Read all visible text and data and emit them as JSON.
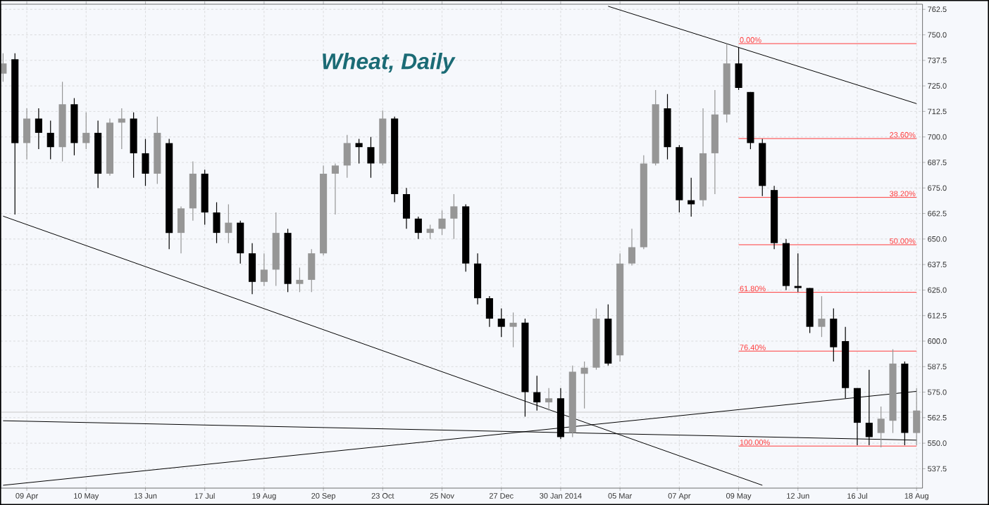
{
  "chart_data": {
    "type": "candlestick",
    "title": "Wheat, Daily",
    "categories": [
      null,
      null,
      "09 Apr",
      null,
      null,
      null,
      null,
      "10 May",
      null,
      null,
      null,
      null,
      "13 Jun",
      null,
      null,
      null,
      null,
      "17 Jul",
      null,
      null,
      null,
      null,
      "19 Aug",
      null,
      null,
      null,
      null,
      "20 Sep",
      null,
      null,
      null,
      null,
      "23 Oct",
      null,
      null,
      null,
      null,
      "25 Nov",
      null,
      null,
      null,
      null,
      "27 Dec",
      null,
      null,
      null,
      null,
      "30 Jan 2014",
      null,
      null,
      null,
      null,
      "05 Mar",
      null,
      null,
      null,
      null,
      "07 Apr",
      null,
      null,
      null,
      null,
      "09 May",
      null,
      null,
      null,
      null,
      "12 Jun",
      null,
      null,
      null,
      null,
      "16 Jul",
      null,
      null,
      null,
      null,
      "18 Aug"
    ],
    "ohlc": [
      [
        731,
        741,
        727,
        736
      ],
      [
        738,
        741,
        662,
        697
      ],
      [
        697,
        714,
        689,
        709
      ],
      [
        709,
        714,
        694,
        702
      ],
      [
        702,
        708,
        689,
        695
      ],
      [
        695,
        727,
        688,
        716
      ],
      [
        716,
        719,
        691,
        697
      ],
      [
        697,
        712,
        694,
        702
      ],
      [
        702,
        708,
        675,
        682
      ],
      [
        682,
        709,
        681,
        707
      ],
      [
        707,
        714,
        694,
        709
      ],
      [
        709,
        712,
        680,
        692
      ],
      [
        692,
        699,
        676,
        682
      ],
      [
        682,
        710,
        677,
        702
      ],
      [
        697,
        699,
        645,
        653
      ],
      [
        653,
        666,
        643,
        665
      ],
      [
        665,
        688,
        659,
        682
      ],
      [
        682,
        684,
        657,
        663
      ],
      [
        663,
        668,
        648,
        653
      ],
      [
        653,
        667,
        648,
        658
      ],
      [
        658,
        659,
        638,
        643
      ],
      [
        643,
        648,
        623,
        629
      ],
      [
        629,
        643,
        627,
        635
      ],
      [
        635,
        663,
        627,
        653
      ],
      [
        653,
        655,
        624,
        628
      ],
      [
        628,
        636,
        624,
        630
      ],
      [
        630,
        645,
        624,
        643
      ],
      [
        643,
        686,
        642,
        682
      ],
      [
        682,
        687,
        662,
        686
      ],
      [
        686,
        701,
        680,
        697
      ],
      [
        697,
        699,
        687,
        695
      ],
      [
        695,
        700,
        680,
        687
      ],
      [
        687,
        713,
        686,
        709
      ],
      [
        709,
        710,
        668,
        672
      ],
      [
        672,
        675,
        655,
        660
      ],
      [
        660,
        661,
        650,
        653
      ],
      [
        653,
        657,
        650,
        655
      ],
      [
        655,
        664,
        652,
        660
      ],
      [
        660,
        672,
        650,
        666
      ],
      [
        666,
        667,
        634,
        638
      ],
      [
        638,
        643,
        618,
        621
      ],
      [
        621,
        622,
        607,
        611
      ],
      [
        611,
        616,
        602,
        607
      ],
      [
        607,
        614,
        597,
        609
      ],
      [
        609,
        611,
        563,
        575
      ],
      [
        575,
        583,
        566,
        570
      ],
      [
        570,
        577,
        566,
        572
      ],
      [
        572,
        577,
        552,
        553
      ],
      [
        555,
        588,
        553,
        585
      ],
      [
        584,
        590,
        567,
        587
      ],
      [
        587,
        616,
        586,
        611
      ],
      [
        611,
        618,
        588,
        589
      ],
      [
        593,
        643,
        590,
        638
      ],
      [
        638,
        655,
        637,
        646
      ],
      [
        646,
        691,
        645,
        687
      ],
      [
        687,
        723,
        686,
        716
      ],
      [
        714,
        721,
        689,
        695
      ],
      [
        695,
        696,
        663,
        669
      ],
      [
        669,
        680,
        661,
        667
      ],
      [
        669,
        714,
        666,
        692
      ],
      [
        692,
        723,
        672,
        711
      ],
      [
        711,
        745.5,
        707,
        736
      ],
      [
        736,
        744,
        723,
        724
      ],
      [
        722,
        722,
        694,
        697
      ],
      [
        697,
        699,
        671,
        676
      ],
      [
        674,
        676,
        645,
        648
      ],
      [
        648,
        650,
        625,
        627
      ],
      [
        627,
        643,
        624,
        626
      ],
      [
        626,
        626,
        604,
        607
      ],
      [
        607,
        622,
        602,
        611
      ],
      [
        611,
        616,
        590,
        597
      ],
      [
        600,
        607,
        572,
        577
      ],
      [
        577,
        577,
        549,
        560
      ],
      [
        560,
        586,
        549,
        553
      ],
      [
        555,
        568,
        548,
        562
      ],
      [
        561,
        596,
        555,
        589
      ],
      [
        589,
        590,
        549,
        555
      ],
      [
        555,
        577,
        549,
        566
      ]
    ],
    "ylim": [
      528,
      765
    ],
    "yticks": [
      537.5,
      {
        "value": 550,
        "label": "550.0"
      },
      562.5,
      {
        "value": 575,
        "label": "575.0"
      },
      587.5,
      {
        "value": 600,
        "label": "600.0"
      },
      612.5,
      {
        "value": 625,
        "label": "625.0"
      },
      637.5,
      {
        "value": 650,
        "label": "650.0"
      },
      662.5,
      {
        "value": 675,
        "label": "675.0"
      },
      687.5,
      {
        "value": 700,
        "label": "700.0"
      },
      712.5,
      {
        "value": 725,
        "label": "725.0"
      },
      737.5,
      {
        "value": 750,
        "label": "750.0"
      },
      762.5
    ],
    "grid": true,
    "series": [
      {
        "type": "line",
        "color": "#000000",
        "values": [
          661.2,
          null,
          null,
          null,
          null,
          null,
          null,
          null,
          null,
          null,
          null,
          null,
          null,
          null,
          null,
          null,
          null,
          null,
          null,
          null,
          null,
          null,
          null,
          null,
          null,
          null,
          null,
          null,
          null,
          null,
          null,
          null,
          null,
          null,
          null,
          null,
          null,
          null,
          null,
          null,
          null,
          null,
          null,
          null,
          null,
          null,
          null,
          null,
          null,
          null,
          null,
          null,
          null,
          null,
          null,
          null,
          null,
          null,
          null,
          null,
          null,
          null,
          null,
          null,
          529.4,
          null,
          null,
          null,
          null,
          null,
          null,
          null,
          null,
          null,
          null,
          null,
          null,
          null
        ]
      },
      {
        "type": "line",
        "color": "#000000",
        "values": [
          null,
          null,
          null,
          null,
          null,
          null,
          null,
          null,
          null,
          null,
          null,
          null,
          null,
          null,
          null,
          null,
          null,
          null,
          null,
          null,
          null,
          null,
          null,
          null,
          null,
          null,
          null,
          null,
          null,
          null,
          null,
          null,
          null,
          null,
          null,
          null,
          null,
          null,
          null,
          null,
          null,
          null,
          null,
          null,
          null,
          null,
          null,
          null,
          null,
          null,
          null,
          764.0,
          null,
          null,
          null,
          null,
          null,
          null,
          null,
          null,
          null,
          null,
          null,
          null,
          null,
          null,
          null,
          null,
          null,
          null,
          null,
          null,
          null,
          null,
          null,
          null,
          null,
          716.3
        ]
      },
      {
        "type": "line",
        "color": "#000000",
        "values": [
          529.4,
          null,
          null,
          null,
          null,
          null,
          null,
          null,
          null,
          null,
          null,
          null,
          null,
          null,
          null,
          null,
          null,
          null,
          null,
          null,
          null,
          null,
          null,
          null,
          null,
          null,
          null,
          null,
          null,
          null,
          null,
          null,
          null,
          null,
          null,
          null,
          null,
          null,
          null,
          null,
          null,
          null,
          null,
          null,
          null,
          null,
          null,
          null,
          null,
          null,
          null,
          null,
          null,
          null,
          null,
          null,
          null,
          null,
          null,
          null,
          null,
          null,
          null,
          null,
          null,
          null,
          null,
          null,
          null,
          null,
          null,
          null,
          null,
          null,
          null,
          null,
          null,
          575.4
        ]
      },
      {
        "type": "line",
        "color": "#000000",
        "values": [
          561.0,
          null,
          null,
          null,
          null,
          null,
          null,
          null,
          null,
          null,
          null,
          null,
          null,
          null,
          null,
          null,
          null,
          null,
          null,
          null,
          null,
          null,
          null,
          null,
          null,
          null,
          null,
          null,
          null,
          null,
          null,
          null,
          null,
          null,
          null,
          null,
          null,
          null,
          null,
          null,
          null,
          null,
          null,
          null,
          null,
          null,
          null,
          null,
          null,
          null,
          null,
          null,
          null,
          null,
          null,
          null,
          null,
          null,
          null,
          null,
          null,
          null,
          null,
          null,
          null,
          null,
          null,
          null,
          null,
          null,
          null,
          null,
          null,
          null,
          null,
          null,
          null,
          551.5
        ]
      },
      {
        "type": "line",
        "name": "0.00%",
        "color": "#ff3b3b",
        "values": [
          null,
          null,
          null,
          null,
          null,
          null,
          null,
          null,
          null,
          null,
          null,
          null,
          null,
          null,
          null,
          null,
          null,
          null,
          null,
          null,
          null,
          null,
          null,
          null,
          null,
          null,
          null,
          null,
          null,
          null,
          null,
          null,
          null,
          null,
          null,
          null,
          null,
          null,
          null,
          null,
          null,
          null,
          null,
          null,
          null,
          null,
          null,
          null,
          null,
          null,
          null,
          null,
          null,
          null,
          null,
          null,
          null,
          null,
          null,
          null,
          null,
          null,
          745.7,
          null,
          null,
          null,
          null,
          null,
          null,
          null,
          null,
          null,
          null,
          null,
          null,
          null,
          null,
          745.7
        ]
      },
      {
        "type": "line",
        "name": "23.60%",
        "color": "#ff3b3b",
        "values": [
          null,
          null,
          null,
          null,
          null,
          null,
          null,
          null,
          null,
          null,
          null,
          null,
          null,
          null,
          null,
          null,
          null,
          null,
          null,
          null,
          null,
          null,
          null,
          null,
          null,
          null,
          null,
          null,
          null,
          null,
          null,
          null,
          null,
          null,
          null,
          null,
          null,
          null,
          null,
          null,
          null,
          null,
          null,
          null,
          null,
          null,
          null,
          null,
          null,
          null,
          null,
          null,
          null,
          null,
          null,
          null,
          null,
          null,
          null,
          null,
          null,
          null,
          699.2,
          null,
          null,
          null,
          null,
          null,
          null,
          null,
          null,
          null,
          null,
          null,
          null,
          null,
          null,
          699.2
        ]
      },
      {
        "type": "line",
        "name": "38.20%",
        "color": "#ff3b3b",
        "values": [
          null,
          null,
          null,
          null,
          null,
          null,
          null,
          null,
          null,
          null,
          null,
          null,
          null,
          null,
          null,
          null,
          null,
          null,
          null,
          null,
          null,
          null,
          null,
          null,
          null,
          null,
          null,
          null,
          null,
          null,
          null,
          null,
          null,
          null,
          null,
          null,
          null,
          null,
          null,
          null,
          null,
          null,
          null,
          null,
          null,
          null,
          null,
          null,
          null,
          null,
          null,
          null,
          null,
          null,
          null,
          null,
          null,
          null,
          null,
          null,
          null,
          null,
          670.4,
          null,
          null,
          null,
          null,
          null,
          null,
          null,
          null,
          null,
          null,
          null,
          null,
          null,
          null,
          670.4
        ]
      },
      {
        "type": "line",
        "name": "50.00%",
        "color": "#ff3b3b",
        "values": [
          null,
          null,
          null,
          null,
          null,
          null,
          null,
          null,
          null,
          null,
          null,
          null,
          null,
          null,
          null,
          null,
          null,
          null,
          null,
          null,
          null,
          null,
          null,
          null,
          null,
          null,
          null,
          null,
          null,
          null,
          null,
          null,
          null,
          null,
          null,
          null,
          null,
          null,
          null,
          null,
          null,
          null,
          null,
          null,
          null,
          null,
          null,
          null,
          null,
          null,
          null,
          null,
          null,
          null,
          null,
          null,
          null,
          null,
          null,
          null,
          null,
          null,
          647.2,
          null,
          null,
          null,
          null,
          null,
          null,
          null,
          null,
          null,
          null,
          null,
          null,
          null,
          null,
          647.2
        ]
      },
      {
        "type": "line",
        "name": "61.80%",
        "color": "#ff3b3b",
        "values": [
          null,
          null,
          null,
          null,
          null,
          null,
          null,
          null,
          null,
          null,
          null,
          null,
          null,
          null,
          null,
          null,
          null,
          null,
          null,
          null,
          null,
          null,
          null,
          null,
          null,
          null,
          null,
          null,
          null,
          null,
          null,
          null,
          null,
          null,
          null,
          null,
          null,
          null,
          null,
          null,
          null,
          null,
          null,
          null,
          null,
          null,
          null,
          null,
          null,
          null,
          null,
          null,
          null,
          null,
          null,
          null,
          null,
          null,
          null,
          null,
          null,
          null,
          623.9,
          null,
          null,
          null,
          null,
          null,
          null,
          null,
          null,
          null,
          null,
          null,
          null,
          null,
          null,
          623.9
        ]
      },
      {
        "type": "line",
        "name": "76.40%",
        "color": "#ff3b3b",
        "values": [
          null,
          null,
          null,
          null,
          null,
          null,
          null,
          null,
          null,
          null,
          null,
          null,
          null,
          null,
          null,
          null,
          null,
          null,
          null,
          null,
          null,
          null,
          null,
          null,
          null,
          null,
          null,
          null,
          null,
          null,
          null,
          null,
          null,
          null,
          null,
          null,
          null,
          null,
          null,
          null,
          null,
          null,
          null,
          null,
          null,
          null,
          null,
          null,
          null,
          null,
          null,
          null,
          null,
          null,
          null,
          null,
          null,
          null,
          null,
          null,
          null,
          null,
          595.1,
          null,
          null,
          null,
          null,
          null,
          null,
          null,
          null,
          null,
          null,
          null,
          null,
          null,
          null,
          595.1
        ]
      },
      {
        "type": "line",
        "name": "100.00%",
        "color": "#ff3b3b",
        "values": [
          null,
          null,
          null,
          null,
          null,
          null,
          null,
          null,
          null,
          null,
          null,
          null,
          null,
          null,
          null,
          null,
          null,
          null,
          null,
          null,
          null,
          null,
          null,
          null,
          null,
          null,
          null,
          null,
          null,
          null,
          null,
          null,
          null,
          null,
          null,
          null,
          null,
          null,
          null,
          null,
          null,
          null,
          null,
          null,
          null,
          null,
          null,
          null,
          null,
          null,
          null,
          null,
          null,
          null,
          null,
          null,
          null,
          null,
          null,
          null,
          null,
          null,
          548.6,
          null,
          null,
          null,
          null,
          null,
          null,
          null,
          null,
          null,
          null,
          null,
          null,
          null,
          null,
          548.6
        ]
      }
    ],
    "ref_lines": [
      {
        "axis": "y",
        "value": 565.2,
        "color": "#c8c8c8"
      }
    ]
  }
}
